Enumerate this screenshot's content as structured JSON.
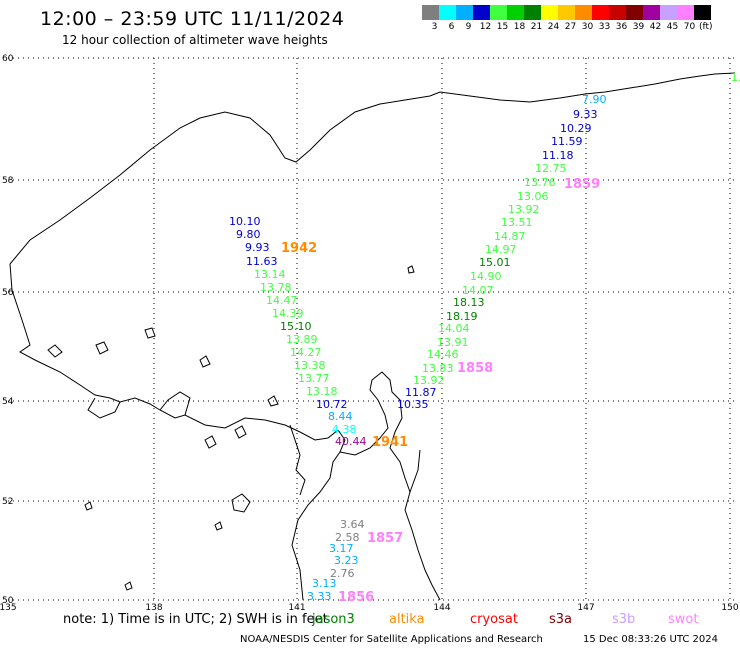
{
  "header": {
    "title": "12:00 – 23:59 UTC 11/11/2024",
    "subtitle": "12 hour collection of altimeter wave heights"
  },
  "scale": {
    "unit": "(ft)",
    "bins": [
      {
        "label": "3",
        "color": "#7f7f7f"
      },
      {
        "label": "6",
        "color": "#00ffff"
      },
      {
        "label": "9",
        "color": "#00b0ff"
      },
      {
        "label": "12",
        "color": "#0000cd"
      },
      {
        "label": "15",
        "color": "#40ff40"
      },
      {
        "label": "18",
        "color": "#00d000"
      },
      {
        "label": "21",
        "color": "#008000"
      },
      {
        "label": "24",
        "color": "#ffff00"
      },
      {
        "label": "27",
        "color": "#ffc800"
      },
      {
        "label": "30",
        "color": "#ff8c00"
      },
      {
        "label": "33",
        "color": "#ff0000"
      },
      {
        "label": "36",
        "color": "#c80000"
      },
      {
        "label": "39",
        "color": "#800000"
      },
      {
        "label": "42",
        "color": "#a000a0"
      },
      {
        "label": "45",
        "color": "#c8a0ff"
      },
      {
        "label": "70",
        "color": "#ff80ff"
      },
      {
        "label": "",
        "color": "#000000"
      }
    ]
  },
  "map": {
    "lon_labels": [
      "135",
      "138",
      "141",
      "144",
      "147",
      "150"
    ],
    "lat_labels": [
      "60",
      "58",
      "56",
      "54",
      "52",
      "50"
    ],
    "track_times": [
      {
        "text": "1942",
        "color": "#ff8c00"
      },
      {
        "text": "1941",
        "color": "#ff8c00"
      },
      {
        "text": "1859",
        "color": "#ff80ff"
      },
      {
        "text": "1858",
        "color": "#ff80ff"
      },
      {
        "text": "1857",
        "color": "#ff80ff"
      },
      {
        "text": "1856",
        "color": "#ff80ff"
      }
    ],
    "wave_heights": [
      {
        "v": "10.10",
        "c": "#0000cd"
      },
      {
        "v": "9.80",
        "c": "#0000cd"
      },
      {
        "v": "9.93",
        "c": "#0000cd"
      },
      {
        "v": "11.63",
        "c": "#0000cd"
      },
      {
        "v": "13.14",
        "c": "#40ff40"
      },
      {
        "v": "13.78",
        "c": "#40ff40"
      },
      {
        "v": "14.47",
        "c": "#40ff40"
      },
      {
        "v": "14.39",
        "c": "#40ff40"
      },
      {
        "v": "15.10",
        "c": "#008000"
      },
      {
        "v": "13.89",
        "c": "#40ff40"
      },
      {
        "v": "14.27",
        "c": "#40ff40"
      },
      {
        "v": "13.38",
        "c": "#40ff40"
      },
      {
        "v": "13.77",
        "c": "#40ff40"
      },
      {
        "v": "13.18",
        "c": "#40ff40"
      },
      {
        "v": "10.72",
        "c": "#0000cd"
      },
      {
        "v": "8.44",
        "c": "#00b0ff"
      },
      {
        "v": "4.38",
        "c": "#00ffff"
      },
      {
        "v": "40.44",
        "c": "#a000a0"
      },
      {
        "v": "7.90",
        "c": "#00b0ff"
      },
      {
        "v": "9.33",
        "c": "#0000cd"
      },
      {
        "v": "10.29",
        "c": "#0000cd"
      },
      {
        "v": "11.59",
        "c": "#0000cd"
      },
      {
        "v": "11.18",
        "c": "#0000cd"
      },
      {
        "v": "12.75",
        "c": "#40ff40"
      },
      {
        "v": "13.76",
        "c": "#40ff40"
      },
      {
        "v": "13.06",
        "c": "#40ff40"
      },
      {
        "v": "13.92",
        "c": "#40ff40"
      },
      {
        "v": "13.51",
        "c": "#40ff40"
      },
      {
        "v": "14.87",
        "c": "#40ff40"
      },
      {
        "v": "14.97",
        "c": "#40ff40"
      },
      {
        "v": "15.01",
        "c": "#008000"
      },
      {
        "v": "14.90",
        "c": "#40ff40"
      },
      {
        "v": "14.07",
        "c": "#40ff40"
      },
      {
        "v": "18.13",
        "c": "#008000"
      },
      {
        "v": "18.19",
        "c": "#008000"
      },
      {
        "v": "14.04",
        "c": "#40ff40"
      },
      {
        "v": "13.91",
        "c": "#40ff40"
      },
      {
        "v": "14.46",
        "c": "#40ff40"
      },
      {
        "v": "13.83",
        "c": "#40ff40"
      },
      {
        "v": "13.92",
        "c": "#40ff40"
      },
      {
        "v": "11.87",
        "c": "#0000cd"
      },
      {
        "v": "10.35",
        "c": "#0000cd"
      },
      {
        "v": "3.64",
        "c": "#7f7f7f"
      },
      {
        "v": "2.58",
        "c": "#7f7f7f"
      },
      {
        "v": "3.17",
        "c": "#00b0ff"
      },
      {
        "v": "3.23",
        "c": "#00b0ff"
      },
      {
        "v": "2.76",
        "c": "#7f7f7f"
      },
      {
        "v": "3.13",
        "c": "#00b0ff"
      },
      {
        "v": "3.33",
        "c": "#00b0ff"
      },
      {
        "v": "1.",
        "c": "#40ff40"
      }
    ]
  },
  "footer": {
    "note": "note:  1) Time is in UTC;  2) SWH is in feet",
    "satellites": [
      {
        "name": "jason3",
        "color": "#008000"
      },
      {
        "name": "altika",
        "color": "#ff8c00"
      },
      {
        "name": "cryosat",
        "color": "#ff0000"
      },
      {
        "name": "s3a",
        "color": "#800000"
      },
      {
        "name": "s3b",
        "color": "#c8a0ff"
      },
      {
        "name": "swot",
        "color": "#ff80ff"
      }
    ],
    "credit": "NOAA/NESDIS Center for Satellite Applications and Research",
    "timestamp": "15 Dec 08:33:26 UTC 2024"
  }
}
